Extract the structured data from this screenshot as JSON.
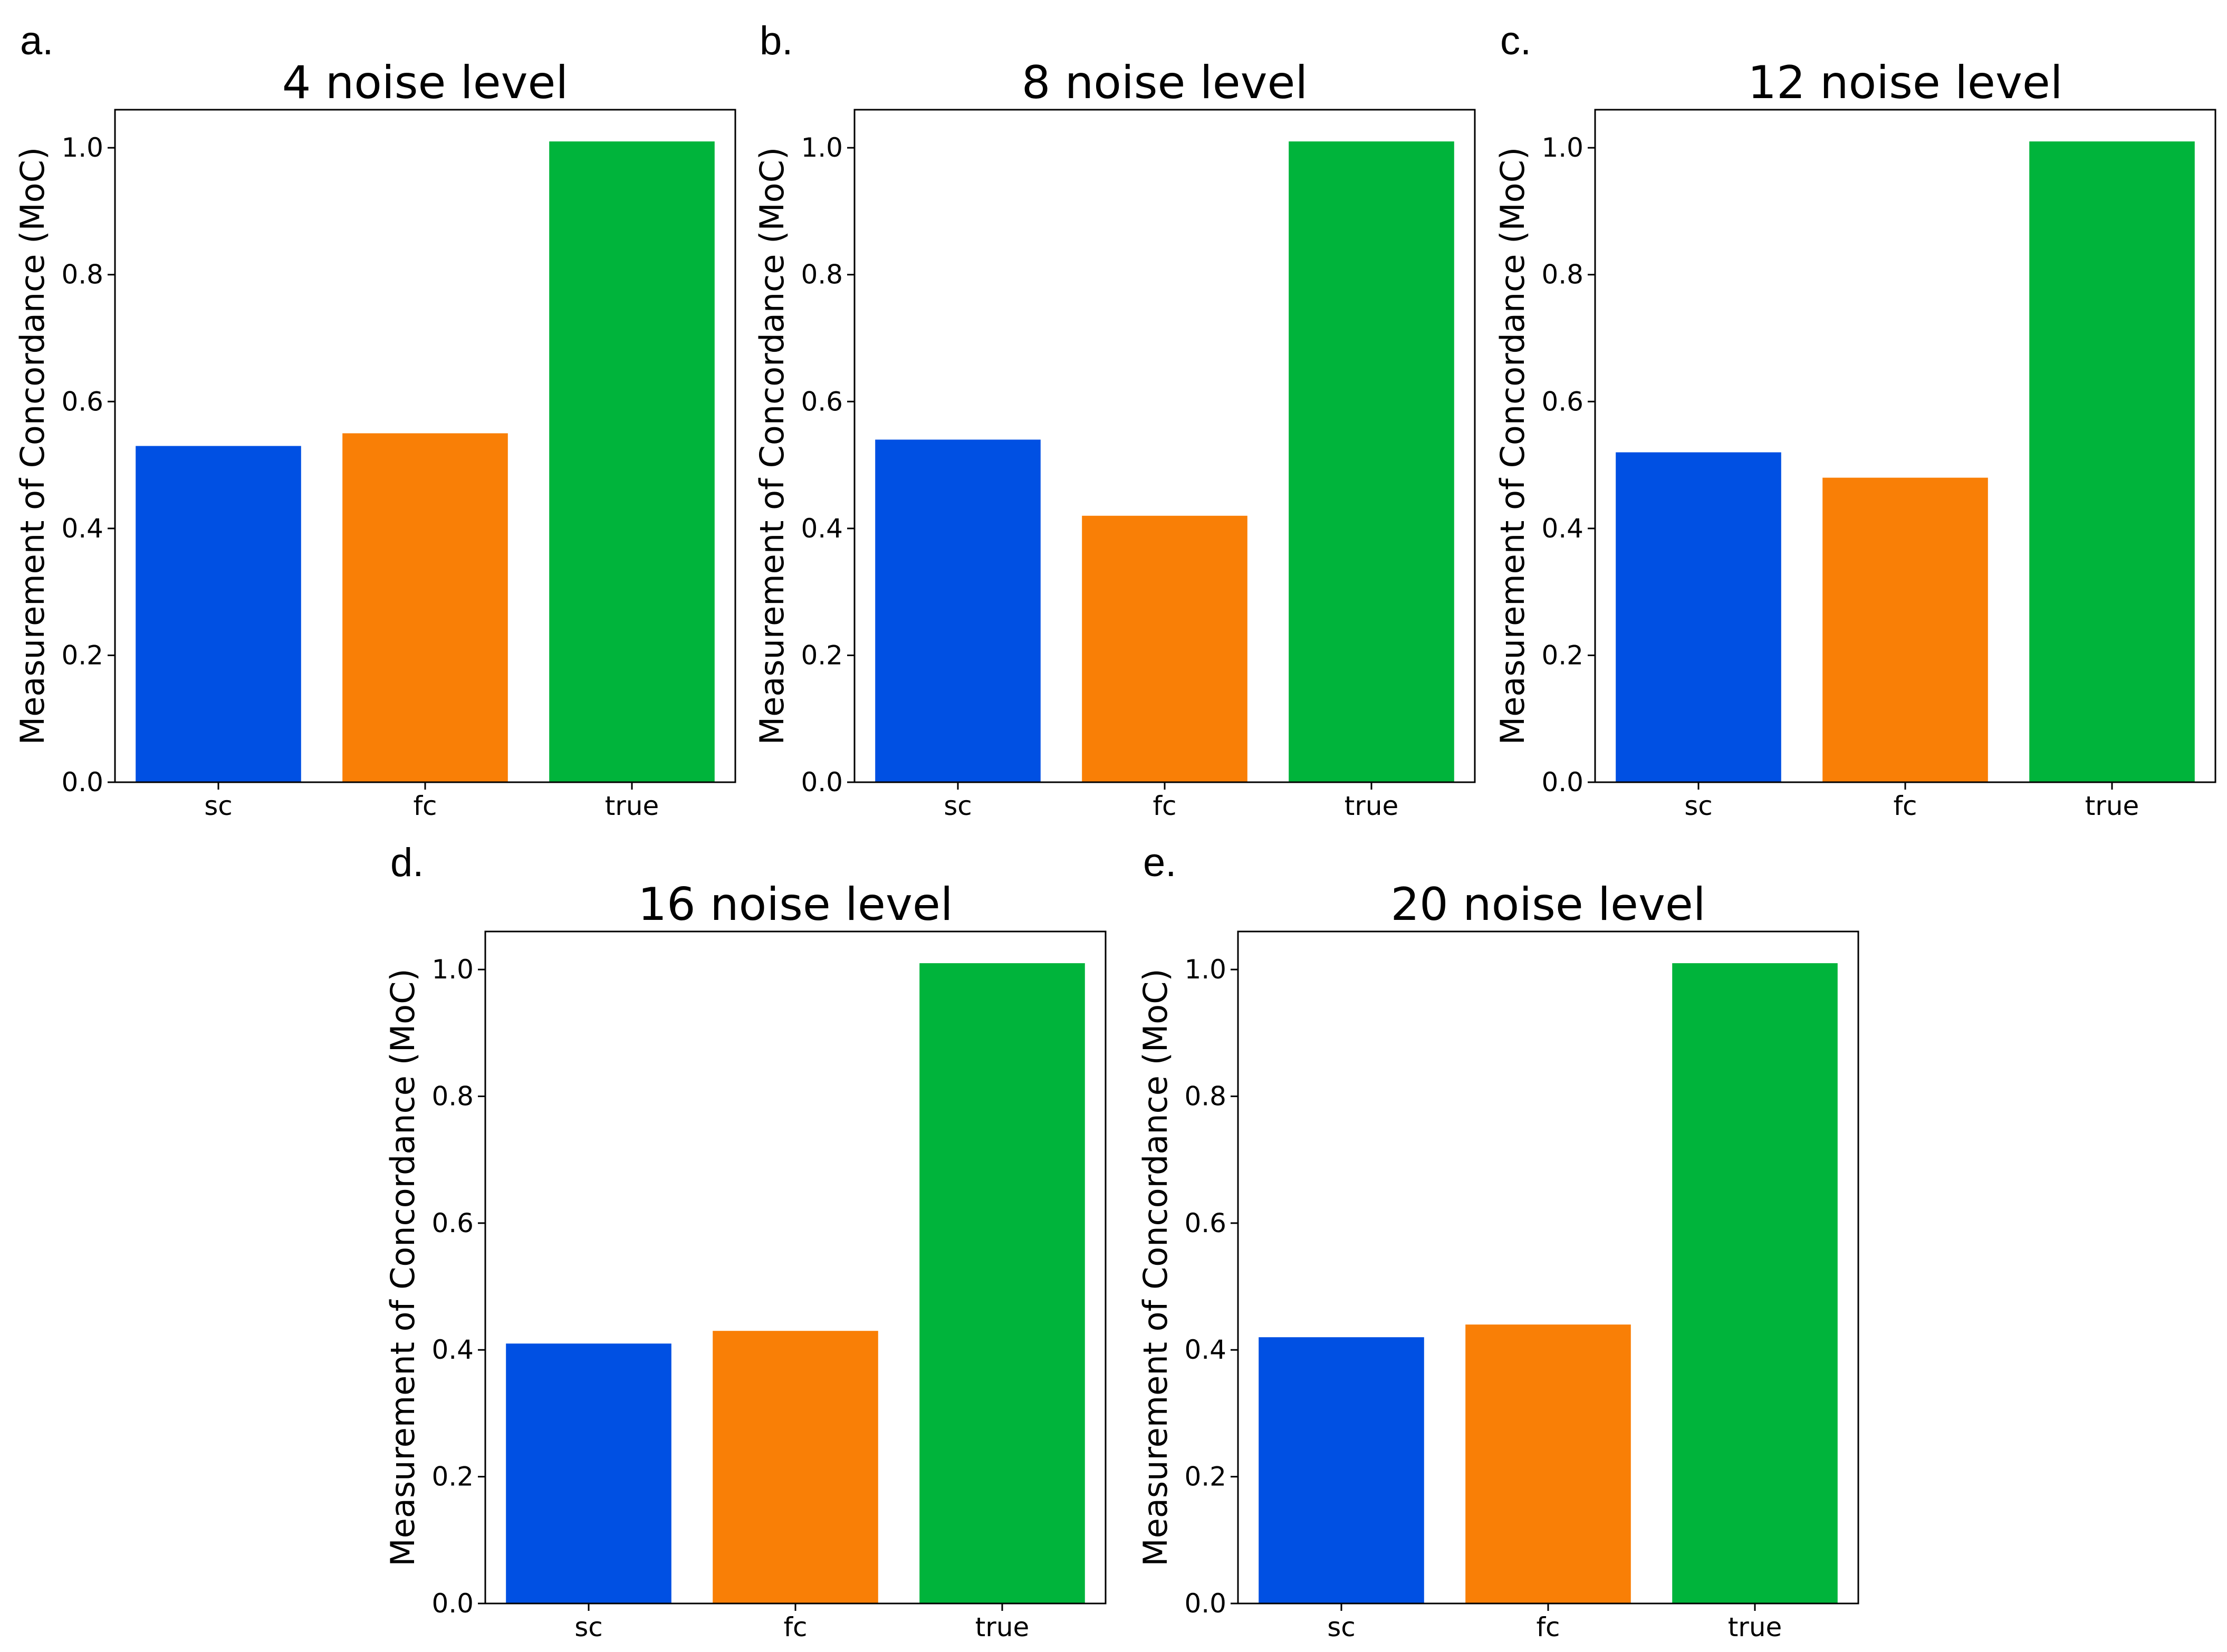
{
  "chart_data": [
    {
      "type": "bar",
      "panel_label": "a.",
      "title": "4 noise level",
      "xlabel": "",
      "ylabel": "Measurement of Concordance (MoC)",
      "categories": [
        "sc",
        "fc",
        "true"
      ],
      "values": [
        0.53,
        0.55,
        1.01
      ],
      "colors": [
        "#0050e3",
        "#f97f06",
        "#00b43b"
      ],
      "ylim": [
        0,
        1.06
      ],
      "yticks": [
        "0.0",
        "0.2",
        "0.4",
        "0.6",
        "0.8",
        "1.0"
      ],
      "grid": false,
      "legend": "none"
    },
    {
      "type": "bar",
      "panel_label": "b.",
      "title": "8 noise level",
      "xlabel": "",
      "ylabel": "Measurement of Concordance (MoC)",
      "categories": [
        "sc",
        "fc",
        "true"
      ],
      "values": [
        0.54,
        0.42,
        1.01
      ],
      "colors": [
        "#0050e3",
        "#f97f06",
        "#00b43b"
      ],
      "ylim": [
        0,
        1.06
      ],
      "yticks": [
        "0.0",
        "0.2",
        "0.4",
        "0.6",
        "0.8",
        "1.0"
      ],
      "grid": false,
      "legend": "none"
    },
    {
      "type": "bar",
      "panel_label": "c.",
      "title": "12 noise level",
      "xlabel": "",
      "ylabel": "Measurement of Concordance (MoC)",
      "categories": [
        "sc",
        "fc",
        "true"
      ],
      "values": [
        0.52,
        0.48,
        1.01
      ],
      "colors": [
        "#0050e3",
        "#f97f06",
        "#00b43b"
      ],
      "ylim": [
        0,
        1.06
      ],
      "yticks": [
        "0.0",
        "0.2",
        "0.4",
        "0.6",
        "0.8",
        "1.0"
      ],
      "grid": false,
      "legend": "none"
    },
    {
      "type": "bar",
      "panel_label": "d.",
      "title": "16 noise level",
      "xlabel": "",
      "ylabel": "Measurement of Concordance (MoC)",
      "categories": [
        "sc",
        "fc",
        "true"
      ],
      "values": [
        0.41,
        0.43,
        1.01
      ],
      "colors": [
        "#0050e3",
        "#f97f06",
        "#00b43b"
      ],
      "ylim": [
        0,
        1.06
      ],
      "yticks": [
        "0.0",
        "0.2",
        "0.4",
        "0.6",
        "0.8",
        "1.0"
      ],
      "grid": false,
      "legend": "none"
    },
    {
      "type": "bar",
      "panel_label": "e.",
      "title": "20 noise level",
      "xlabel": "",
      "ylabel": "Measurement of Concordance (MoC)",
      "categories": [
        "sc",
        "fc",
        "true"
      ],
      "values": [
        0.42,
        0.44,
        1.01
      ],
      "colors": [
        "#0050e3",
        "#f97f06",
        "#00b43b"
      ],
      "ylim": [
        0,
        1.06
      ],
      "yticks": [
        "0.0",
        "0.2",
        "0.4",
        "0.6",
        "0.8",
        "1.0"
      ],
      "grid": false,
      "legend": "none"
    }
  ]
}
